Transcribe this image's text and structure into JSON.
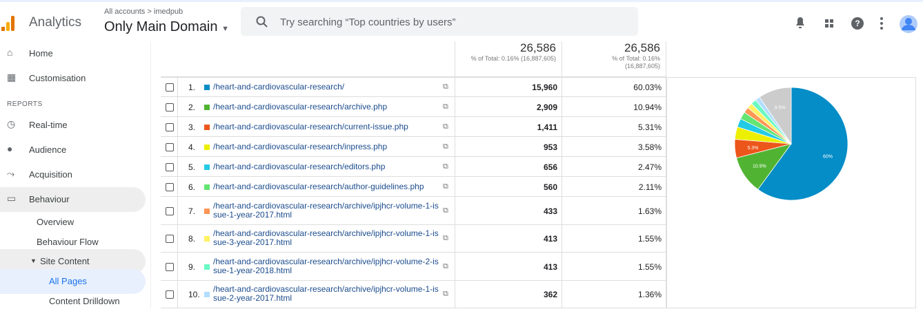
{
  "header": {
    "product": "Analytics",
    "account": "All accounts",
    "breadcrumb_separator": ">",
    "property_group": "imedpub",
    "property": "Only Main Domain",
    "search_placeholder": "Try searching “Top countries by users”"
  },
  "sidebar": {
    "top_items": [
      "Home",
      "Customisation"
    ],
    "section": "REPORTS",
    "report_items": [
      "Real-time",
      "Audience",
      "Acquisition",
      "Behaviour"
    ],
    "sub_items": [
      "Overview",
      "Behaviour Flow"
    ],
    "group": "Site Content",
    "group_items": [
      "All Pages",
      "Content Drilldown"
    ]
  },
  "table": {
    "totals": [
      {
        "value": "26,586",
        "note": "% of Total: 0.16% (16,887,605)"
      },
      {
        "value": "26,586",
        "note": "% of Total: 0.16% (16,887,605)"
      }
    ],
    "rows": [
      {
        "index": "1.",
        "page": "/heart-and-cardiovascular-research/",
        "pageviews": "15,960",
        "percent": "60.03%"
      },
      {
        "index": "2.",
        "page": "/heart-and-cardiovascular-research/archive.php",
        "pageviews": "2,909",
        "percent": "10.94%"
      },
      {
        "index": "3.",
        "page": "/heart-and-cardiovascular-research/current-issue.php",
        "pageviews": "1,411",
        "percent": "5.31%"
      },
      {
        "index": "4.",
        "page": "/heart-and-cardiovascular-research/inpress.php",
        "pageviews": "953",
        "percent": "3.58%"
      },
      {
        "index": "5.",
        "page": "/heart-and-cardiovascular-research/editors.php",
        "pageviews": "656",
        "percent": "2.47%"
      },
      {
        "index": "6.",
        "page": "/heart-and-cardiovascular-research/author-guidelines.php",
        "pageviews": "560",
        "percent": "2.11%"
      },
      {
        "index": "7.",
        "page": "/heart-and-cardiovascular-research/archive/ipjhcr-volume-1-issue-1-year-2017.html",
        "pageviews": "433",
        "percent": "1.63%"
      },
      {
        "index": "8.",
        "page": "/heart-and-cardiovascular-research/archive/ipjhcr-volume-1-issue-3-year-2017.html",
        "pageviews": "413",
        "percent": "1.55%"
      },
      {
        "index": "9.",
        "page": "/heart-and-cardiovascular-research/archive/ipjhcr-volume-2-issue-1-year-2018.html",
        "pageviews": "413",
        "percent": "1.55%"
      },
      {
        "index": "10.",
        "page": "/heart-and-cardiovascular-research/archive/ipjhcr-volume-1-issue-2-year-2017.html",
        "pageviews": "362",
        "percent": "1.36%"
      }
    ]
  },
  "pie": {
    "type": "pie",
    "slices": [
      {
        "value": 60.03,
        "color": "#058dc7",
        "label": "60%"
      },
      {
        "value": 10.94,
        "color": "#50b432",
        "label": "10.9%"
      },
      {
        "value": 5.31,
        "color": "#ed561b",
        "label": "5.3%"
      },
      {
        "value": 3.58,
        "color": "#edef00"
      },
      {
        "value": 2.47,
        "color": "#24cbe5"
      },
      {
        "value": 2.11,
        "color": "#64e572"
      },
      {
        "value": 1.63,
        "color": "#ff9655"
      },
      {
        "value": 1.55,
        "color": "#fff263"
      },
      {
        "value": 1.55,
        "color": "#6af9c4"
      },
      {
        "value": 1.36,
        "color": "#b2deff"
      },
      {
        "value": 9.47,
        "color": "#cccccc",
        "label": "9.5%"
      }
    ]
  }
}
